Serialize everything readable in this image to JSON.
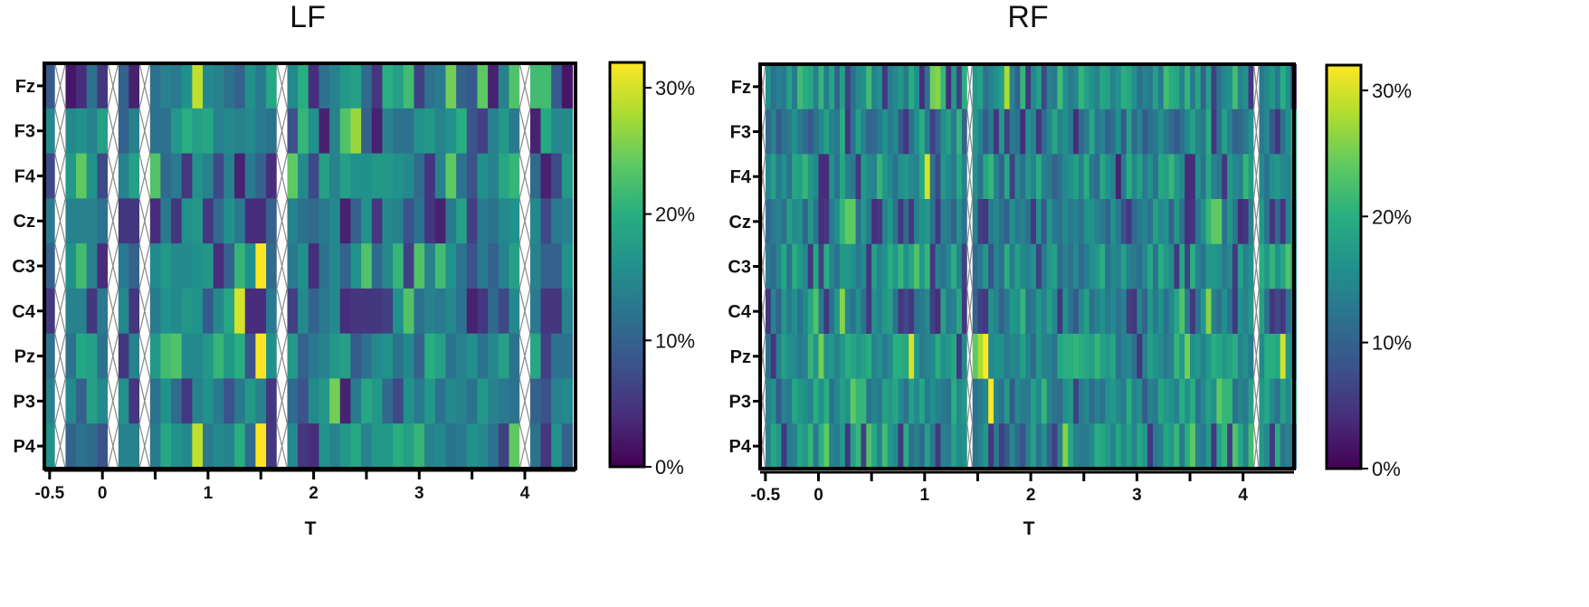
{
  "chart_data": [
    {
      "type": "heatmap",
      "title": "LF",
      "xlabel": "T",
      "ylabel": "",
      "rows": [
        "Fz",
        "F3",
        "F4",
        "Cz",
        "C3",
        "C4",
        "Pz",
        "P3",
        "P4"
      ],
      "x_ticks": [
        "-0.5",
        "0",
        "1",
        "2",
        "3",
        "4"
      ],
      "x_tick_values": [
        -0.5,
        0,
        1,
        2,
        3,
        4
      ],
      "xlim": [
        -0.55,
        4.48
      ],
      "bin_width": 0.1,
      "missing_time_bins": [
        -0.45,
        0.05,
        0.35,
        1.75,
        4.05
      ],
      "colorbar": {
        "min": 0,
        "max": 32,
        "ticks": [
          "0%",
          "10%",
          "20%",
          "30%"
        ],
        "tick_values": [
          0,
          10,
          20,
          30
        ],
        "colormap": "viridis"
      },
      "row_values": {
        "Fz": [
          9,
          2,
          4,
          12,
          5,
          10,
          3,
          12,
          14,
          13,
          16,
          29,
          15,
          14,
          12,
          10,
          16,
          13,
          19,
          15,
          20,
          4,
          12,
          14,
          17,
          18,
          11,
          5,
          20,
          18,
          22,
          6,
          12,
          13,
          25,
          10,
          9,
          24,
          3,
          14,
          23,
          22,
          22
        ],
        "F3": [
          15,
          15,
          16,
          14,
          18,
          10,
          14,
          12,
          12,
          17,
          20,
          18,
          19,
          14,
          15,
          14,
          15,
          13,
          12,
          8,
          21,
          16,
          3,
          14,
          23,
          27,
          10,
          3,
          14,
          12,
          12,
          16,
          17,
          14,
          16,
          20,
          8,
          6,
          14,
          17,
          13,
          3,
          19
        ],
        "F4": [
          7,
          17,
          24,
          16,
          7,
          14,
          18,
          23,
          11,
          13,
          5,
          16,
          14,
          7,
          14,
          3,
          13,
          10,
          4,
          24,
          15,
          7,
          18,
          14,
          18,
          16,
          16,
          17,
          17,
          16,
          15,
          11,
          5,
          14,
          24,
          12,
          8,
          16,
          14,
          19,
          21,
          11,
          3
        ],
        "Cz": [
          13,
          14,
          14,
          14,
          12,
          5,
          5,
          4,
          13,
          5,
          16,
          17,
          5,
          11,
          16,
          13,
          4,
          4,
          10,
          14,
          12,
          11,
          13,
          15,
          3,
          10,
          16,
          5,
          15,
          14,
          8,
          12,
          5,
          3,
          13,
          18,
          6,
          13,
          12,
          15,
          16,
          15,
          7
        ],
        "C3": [
          10,
          16,
          22,
          14,
          4,
          13,
          10,
          15,
          17,
          15,
          15,
          16,
          17,
          4,
          10,
          21,
          16,
          32,
          11,
          13,
          16,
          4,
          12,
          15,
          10,
          16,
          23,
          11,
          15,
          21,
          6,
          23,
          14,
          22,
          16,
          12,
          8,
          13,
          10,
          14,
          18,
          14,
          10
        ],
        "C4": [
          5,
          14,
          14,
          5,
          13,
          15,
          5,
          13,
          16,
          15,
          17,
          16,
          9,
          15,
          19,
          30,
          4,
          4,
          13,
          6,
          15,
          10,
          13,
          15,
          4,
          5,
          5,
          5,
          6,
          16,
          23,
          12,
          14,
          13,
          15,
          12,
          3,
          5,
          11,
          7,
          15,
          13,
          5
        ],
        "Pz": [
          12,
          12,
          19,
          18,
          12,
          5,
          14,
          17,
          22,
          23,
          15,
          15,
          17,
          21,
          17,
          20,
          8,
          32,
          16,
          17,
          10,
          13,
          14,
          17,
          18,
          9,
          12,
          15,
          16,
          12,
          15,
          10,
          20,
          18,
          12,
          14,
          16,
          12,
          15,
          18,
          12,
          19,
          6
        ],
        "P3": [
          14,
          15,
          10,
          18,
          15,
          16,
          5,
          12,
          16,
          11,
          5,
          14,
          16,
          13,
          8,
          13,
          17,
          14,
          5,
          11,
          8,
          15,
          17,
          25,
          3,
          13,
          19,
          17,
          11,
          7,
          16,
          13,
          17,
          12,
          15,
          14,
          12,
          17,
          14,
          13,
          12,
          10,
          8
        ],
        "P4": [
          16,
          10,
          12,
          11,
          8,
          14,
          14,
          13,
          19,
          16,
          15,
          29,
          13,
          15,
          14,
          20,
          11,
          32,
          5,
          15,
          5,
          4,
          16,
          14,
          17,
          19,
          14,
          17,
          17,
          20,
          18,
          21,
          14,
          15,
          12,
          13,
          16,
          15,
          12,
          6,
          24,
          12,
          5
        ]
      }
    },
    {
      "type": "heatmap",
      "title": "RF",
      "xlabel": "T",
      "ylabel": "",
      "rows": [
        "Fz",
        "F3",
        "F4",
        "Cz",
        "C3",
        "C4",
        "Pz",
        "P3",
        "P4"
      ],
      "x_ticks": [
        "-0.5",
        "0",
        "1",
        "2",
        "3",
        "4"
      ],
      "x_tick_values": [
        -0.5,
        0,
        1,
        2,
        3,
        4
      ],
      "xlim": [
        -0.55,
        4.48
      ],
      "bin_width": 0.05,
      "missing_time_bins": [
        -0.525,
        1.425,
        4.125
      ],
      "colorbar": {
        "min": 0,
        "max": 32,
        "ticks": [
          "0%",
          "10%",
          "20%",
          "30%"
        ],
        "tick_values": [
          0,
          10,
          20,
          30
        ],
        "colormap": "viridis"
      },
      "row_values": {
        "Fz": [
          16,
          12,
          14,
          13,
          18,
          13,
          22,
          20,
          19,
          14,
          21,
          13,
          19,
          10,
          18,
          6,
          12,
          15,
          16,
          22,
          14,
          16,
          5,
          13,
          15,
          17,
          13,
          20,
          16,
          4,
          12,
          25,
          26,
          21,
          4,
          17,
          6,
          20,
          17,
          18,
          12,
          14,
          16,
          18,
          28,
          14,
          10,
          21,
          5,
          15,
          18,
          7,
          14,
          13,
          22,
          16,
          13,
          15,
          21,
          18,
          16,
          14,
          19,
          18,
          14,
          16,
          20,
          19
        ],
        "F3": [
          11,
          14,
          9,
          12,
          13,
          16,
          13,
          11,
          9,
          12,
          15,
          18,
          14,
          13,
          20,
          5,
          12,
          18,
          14,
          10,
          11,
          13,
          16,
          13,
          15,
          9,
          5,
          12,
          16,
          20,
          13,
          6,
          10,
          16,
          18,
          13,
          21,
          10,
          17,
          14,
          9,
          13,
          5,
          17,
          6,
          13,
          12,
          4,
          16,
          14,
          5,
          11,
          15,
          19,
          14,
          16,
          13,
          4,
          11,
          13,
          19,
          13,
          14,
          10,
          12,
          16,
          9,
          18
        ],
        "F4": [
          15,
          18,
          13,
          16,
          12,
          19,
          18,
          21,
          17,
          15,
          4,
          4,
          16,
          12,
          19,
          14,
          13,
          5,
          17,
          15,
          14,
          21,
          17,
          15,
          12,
          16,
          17,
          15,
          14,
          19,
          30,
          12,
          7,
          17,
          15,
          13,
          19,
          14,
          16,
          12,
          19,
          21,
          14,
          10,
          19,
          6,
          15,
          12,
          17,
          14,
          20,
          14,
          13,
          10,
          12,
          15,
          16,
          18,
          14,
          20,
          13,
          11,
          19,
          16,
          14,
          3,
          13,
          20
        ],
        "Cz": [
          11,
          13,
          14,
          12,
          18,
          15,
          16,
          10,
          17,
          12,
          4,
          5,
          13,
          16,
          21,
          24,
          24,
          12,
          17,
          13,
          4,
          5,
          14,
          17,
          12,
          5,
          11,
          5,
          14,
          16,
          17,
          12,
          5,
          14,
          13,
          10,
          16,
          12,
          14,
          6,
          5,
          13,
          15,
          12,
          10,
          16,
          13,
          14,
          12,
          5,
          16,
          9,
          17,
          13,
          12,
          15,
          13,
          14,
          12,
          16,
          16,
          14,
          13,
          10,
          16,
          13,
          8,
          5
        ],
        "C3": [
          13,
          11,
          15,
          19,
          12,
          20,
          17,
          15,
          5,
          19,
          6,
          20,
          14,
          12,
          17,
          17,
          16,
          13,
          15,
          5,
          18,
          14,
          16,
          20,
          17,
          21,
          16,
          19,
          23,
          17,
          21,
          5,
          14,
          12,
          15,
          20,
          14,
          6,
          11,
          13,
          17,
          8,
          14,
          12,
          20,
          13,
          18,
          15,
          14,
          16,
          6,
          13,
          17,
          18,
          11,
          14,
          12,
          15,
          11,
          13,
          16,
          17,
          20,
          12,
          15,
          14,
          18,
          14
        ],
        "C4": [
          5,
          14,
          10,
          17,
          13,
          16,
          12,
          15,
          19,
          23,
          13,
          5,
          12,
          17,
          26,
          14,
          12,
          16,
          12,
          5,
          16,
          14,
          17,
          18,
          12,
          5,
          7,
          5,
          12,
          13,
          15,
          6,
          4,
          18,
          13,
          14,
          19,
          5,
          10,
          6,
          5,
          16,
          14,
          10,
          13,
          17,
          16,
          21,
          12,
          13,
          17,
          14,
          18,
          15,
          5,
          16,
          12,
          9,
          15,
          18,
          12,
          14,
          16,
          13,
          15,
          12,
          14,
          6
        ],
        "Pz": [
          12,
          5,
          14,
          18,
          16,
          15,
          13,
          14,
          21,
          17,
          25,
          16,
          17,
          14,
          17,
          20,
          19,
          17,
          18,
          20,
          14,
          16,
          13,
          15,
          20,
          20,
          19,
          30,
          17,
          13,
          14,
          15,
          20,
          16,
          17,
          19,
          5,
          15,
          24,
          28,
          32,
          15,
          16,
          16,
          13,
          15,
          14,
          18,
          14,
          11,
          17,
          14,
          14,
          12,
          19,
          20,
          20,
          21,
          20,
          19,
          18,
          21,
          18,
          17,
          19,
          12,
          14,
          15
        ],
        "P3": [
          14,
          16,
          9,
          14,
          13,
          19,
          17,
          16,
          14,
          20,
          16,
          20,
          12,
          15,
          18,
          16,
          24,
          21,
          21,
          12,
          14,
          13,
          18,
          17,
          19,
          15,
          12,
          18,
          15,
          19,
          13,
          16,
          14,
          13,
          12,
          20,
          15,
          17,
          12,
          13,
          15,
          32,
          14,
          12,
          17,
          9,
          15,
          13,
          13,
          18,
          15,
          21,
          14,
          12,
          11,
          16,
          17,
          6,
          13,
          15,
          11,
          14,
          12,
          16,
          17,
          15,
          13,
          20
        ],
        "P4": [
          14,
          19,
          17,
          5,
          13,
          14,
          19,
          17,
          21,
          13,
          20,
          24,
          14,
          13,
          17,
          5,
          18,
          21,
          6,
          23,
          19,
          14,
          22,
          17,
          15,
          5,
          20,
          12,
          14,
          11,
          18,
          13,
          5,
          14,
          13,
          18,
          15,
          16,
          12,
          14,
          17,
          5,
          13,
          6,
          9,
          15,
          11,
          8,
          14,
          18,
          12,
          16,
          10,
          6,
          14,
          26,
          19,
          14,
          13,
          13,
          15,
          20,
          19,
          17,
          14,
          19,
          15,
          18
        ]
      }
    }
  ]
}
